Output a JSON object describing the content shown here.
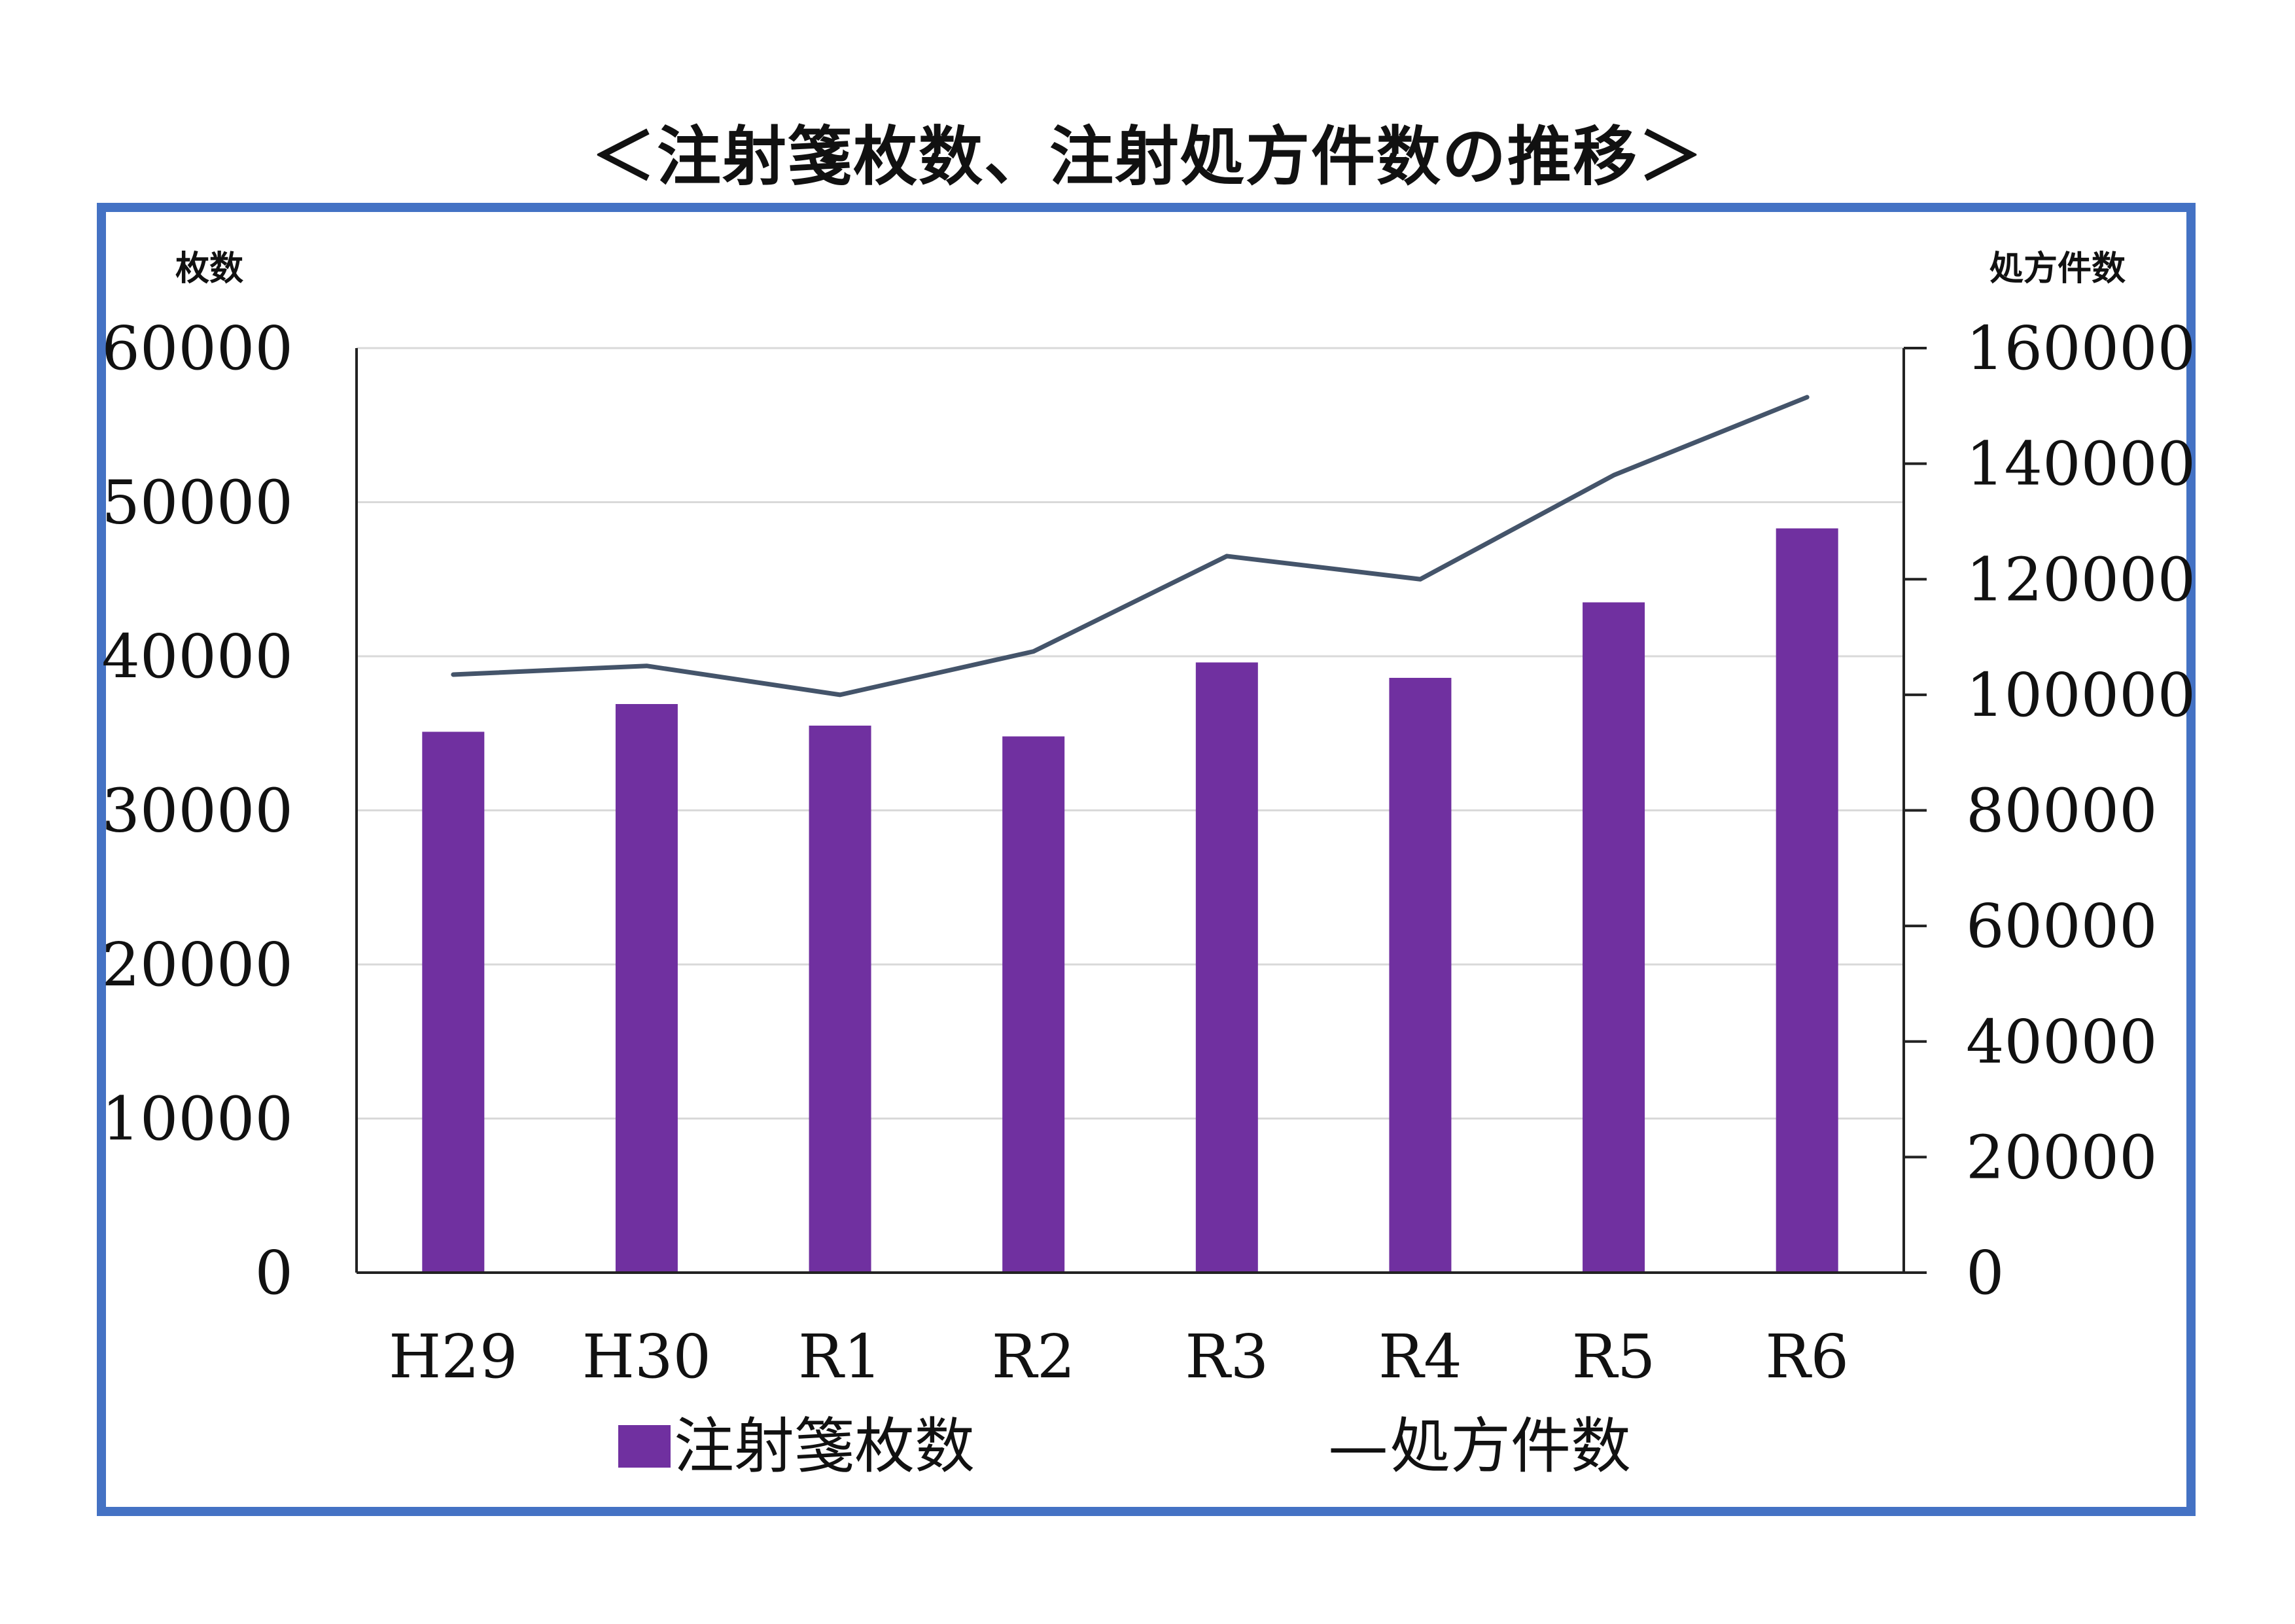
{
  "title": "＜注射箋枚数、注射処方件数の推移＞",
  "chart_data": {
    "type": "bar",
    "categories": [
      "H29",
      "H30",
      "R1",
      "R2",
      "R3",
      "R4",
      "R5",
      "R6"
    ],
    "series": [
      {
        "name": "注射箋枚数",
        "type": "bar",
        "axis": "left",
        "color": "#7030a0",
        "values": [
          35100,
          36900,
          35500,
          34800,
          39600,
          38600,
          43500,
          48300
        ]
      },
      {
        "name": "処方件数",
        "type": "line",
        "axis": "right",
        "color": "#44546a",
        "values": [
          103500,
          105000,
          100000,
          107500,
          124000,
          120000,
          138000,
          151500
        ]
      }
    ],
    "ylabel": "枚数",
    "y2label": "処方件数",
    "ylim": [
      0,
      60000
    ],
    "y2lim": [
      0,
      160000
    ],
    "yticks": [
      "0",
      "10000",
      "20000",
      "30000",
      "40000",
      "50000",
      "60000"
    ],
    "y2ticks": [
      "0",
      "20000",
      "40000",
      "60000",
      "80000",
      "100000",
      "120000",
      "140000",
      "160000"
    ],
    "grid": true,
    "legend_position": "bottom",
    "legend_bar_icon": "purple-square-swatch",
    "legend_line_icon": "—"
  }
}
